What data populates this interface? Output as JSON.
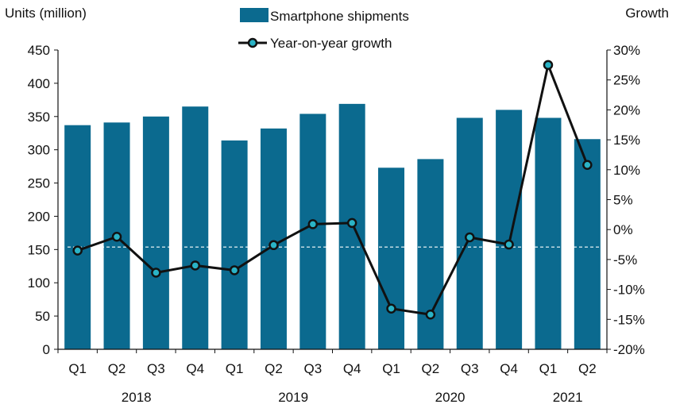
{
  "chart_data": {
    "type": "bar",
    "left_axis_label": "Units (million)",
    "right_axis_label": "Growth",
    "legend": {
      "bar_label": "Smartphone shipments",
      "line_label": "Year-on-year growth",
      "placement": "top-center"
    },
    "categories": [
      "Q1",
      "Q2",
      "Q3",
      "Q4",
      "Q1",
      "Q2",
      "Q3",
      "Q4",
      "Q1",
      "Q2",
      "Q3",
      "Q4",
      "Q1",
      "Q2"
    ],
    "years": [
      {
        "label": "2018",
        "start": 0,
        "end": 3
      },
      {
        "label": "2019",
        "start": 4,
        "end": 7
      },
      {
        "label": "2020",
        "start": 8,
        "end": 11
      },
      {
        "label": "2021",
        "start": 12,
        "end": 13
      }
    ],
    "series": [
      {
        "name": "Smartphone shipments",
        "type": "bar",
        "axis": "left",
        "values": [
          337,
          341,
          350,
          365,
          314,
          332,
          354,
          369,
          273,
          286,
          348,
          360,
          348,
          316
        ]
      },
      {
        "name": "Year-on-year growth",
        "type": "line",
        "axis": "right",
        "values": [
          -3.5,
          -1.2,
          -7.2,
          -6.0,
          -6.8,
          -2.6,
          0.9,
          1.1,
          -13.2,
          -14.2,
          -1.3,
          -2.5,
          27.5,
          10.8
        ]
      }
    ],
    "left_ylim": [
      0,
      450
    ],
    "left_ticks": [
      0,
      50,
      100,
      150,
      200,
      250,
      300,
      350,
      400,
      450
    ],
    "right_ylim": [
      -20,
      30
    ],
    "right_ticks": [
      -20,
      -15,
      -10,
      -5,
      0,
      5,
      10,
      15,
      20,
      25,
      30
    ],
    "right_tick_labels": [
      "-20%",
      "-15%",
      "-10%",
      "-5%",
      "0%",
      "5%",
      "10%",
      "15%",
      "20%",
      "25%",
      "30%"
    ],
    "zero_growth_reference_line": true,
    "colors": {
      "bar": "#0b6a8f",
      "line": "#111111",
      "marker_fill": "#2ab3c6",
      "ref_line": "#ffffff"
    }
  }
}
